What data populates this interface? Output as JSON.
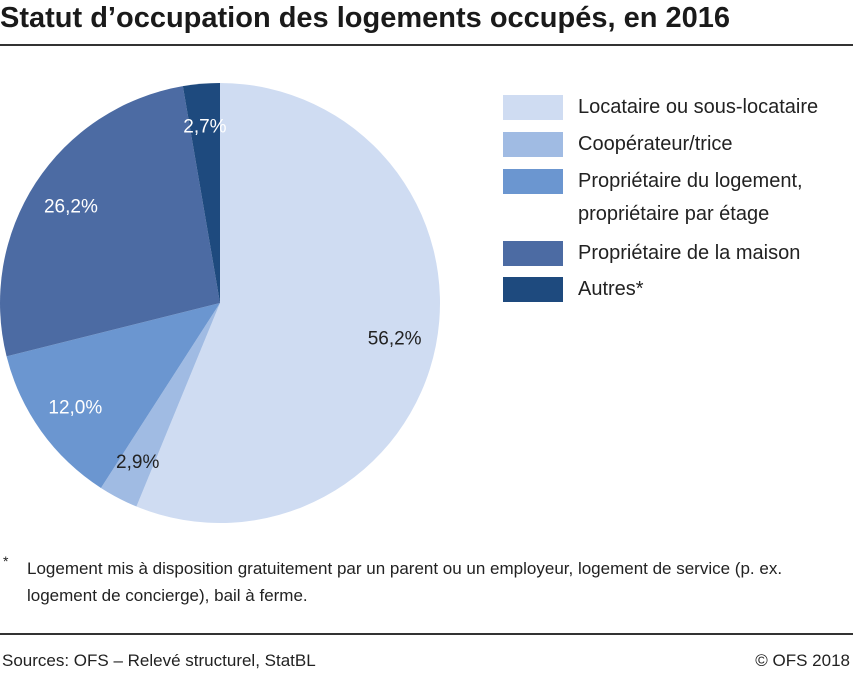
{
  "chart_data": {
    "type": "pie",
    "title": "Statut d’occupation des logements occupés, en 2016",
    "start": "top",
    "direction": "clockwise",
    "legend_position": "right",
    "slices": [
      {
        "name": "Locataire ou sous-locataire",
        "value": 56.2,
        "label": "56,2%",
        "color": "#cfdcf2",
        "label_color": "#222222"
      },
      {
        "name": "Coopérateur/trice",
        "value": 2.9,
        "label": "2,9%",
        "color": "#a0bbe3",
        "label_color": "#222222"
      },
      {
        "name": "Propriétaire du logement, propriétaire par étage",
        "name_lines": [
          "Propriétaire du logement,",
          "propriétaire par étage"
        ],
        "value": 12.0,
        "label": "12,0%",
        "color": "#6b96d0",
        "label_color": "#ffffff"
      },
      {
        "name": "Propriétaire de la maison",
        "value": 26.2,
        "label": "26,2%",
        "color": "#4c6ba3",
        "label_color": "#ffffff"
      },
      {
        "name": "Autres*",
        "value": 2.7,
        "label": "2,7%",
        "color": "#1e4a7e",
        "label_color": "#ffffff"
      }
    ]
  },
  "footnote": {
    "marker": "*",
    "text": "Logement mis à disposition gratuitement par un parent ou un employeur, logement de service (p. ex. logement de concierge), bail à ferme."
  },
  "source": "Sources: OFS – Relevé structurel, StatBL",
  "copyright": "© OFS 2018"
}
